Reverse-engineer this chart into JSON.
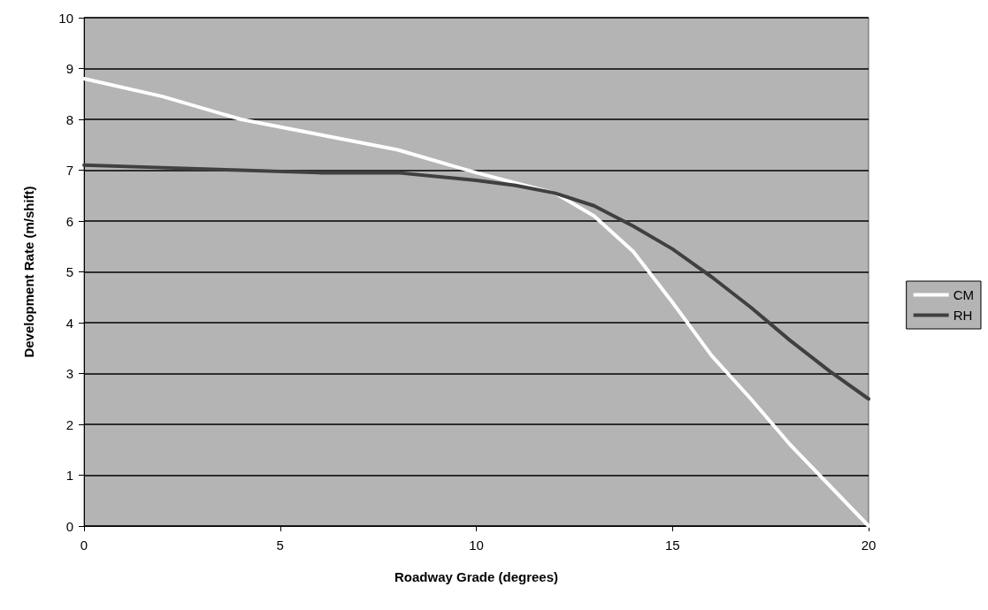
{
  "chart_data": {
    "type": "line",
    "xlabel": "Roadway Grade (degrees)",
    "ylabel": "Development Rate (m/shift)",
    "x": [
      0,
      2,
      4,
      6,
      8,
      10,
      11,
      12,
      13,
      14,
      15,
      16,
      17,
      18,
      19,
      20
    ],
    "series": [
      {
        "name": "CM",
        "color": "#ffffff",
        "values": [
          8.8,
          8.45,
          8.0,
          7.7,
          7.4,
          6.95,
          6.75,
          6.55,
          6.1,
          5.4,
          4.4,
          3.35,
          2.5,
          1.6,
          0.8,
          0
        ]
      },
      {
        "name": "RH",
        "color": "#404040",
        "values": [
          7.1,
          7.05,
          7.0,
          6.95,
          6.95,
          6.8,
          6.7,
          6.55,
          6.3,
          5.9,
          5.45,
          4.9,
          4.3,
          3.65,
          3.05,
          2.5
        ]
      }
    ],
    "xlim": [
      0,
      20
    ],
    "xticks": [
      0,
      5,
      10,
      15,
      20
    ],
    "ylim": [
      0,
      10
    ],
    "yticks": [
      0,
      1,
      2,
      3,
      4,
      5,
      6,
      7,
      8,
      9,
      10
    ],
    "grid": "y",
    "legend": "right",
    "marker": "none",
    "line_style": "solid"
  }
}
